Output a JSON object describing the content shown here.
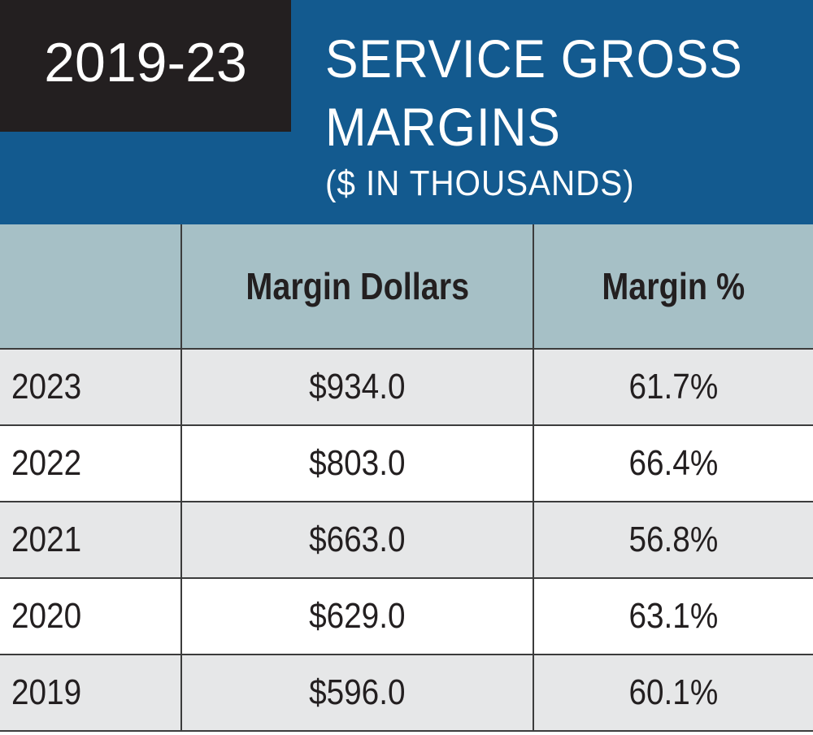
{
  "header": {
    "year_range": "2019-23",
    "title_line1": "SERVICE GROSS",
    "title_line2": "MARGINS",
    "subtitle": "($ IN THOUSANDS)"
  },
  "colors": {
    "header_blue": "#135a8f",
    "year_box": "#231f20",
    "column_header": "#a6c0c6",
    "row_shade": "#e6e7e8"
  },
  "chart_data": {
    "type": "table",
    "title": "SERVICE GROSS MARGINS",
    "subtitle": "($ IN THOUSANDS)",
    "columns": [
      "",
      "Margin Dollars",
      "Margin %"
    ],
    "rows": [
      {
        "year": "2023",
        "margin_dollars": "$934.0",
        "margin_pct": "61.7%"
      },
      {
        "year": "2022",
        "margin_dollars": "$803.0",
        "margin_pct": "66.4%"
      },
      {
        "year": "2021",
        "margin_dollars": "$663.0",
        "margin_pct": "56.8%"
      },
      {
        "year": "2020",
        "margin_dollars": "$629.0",
        "margin_pct": "63.1%"
      },
      {
        "year": "2019",
        "margin_dollars": "$596.0",
        "margin_pct": "60.1%"
      }
    ]
  }
}
